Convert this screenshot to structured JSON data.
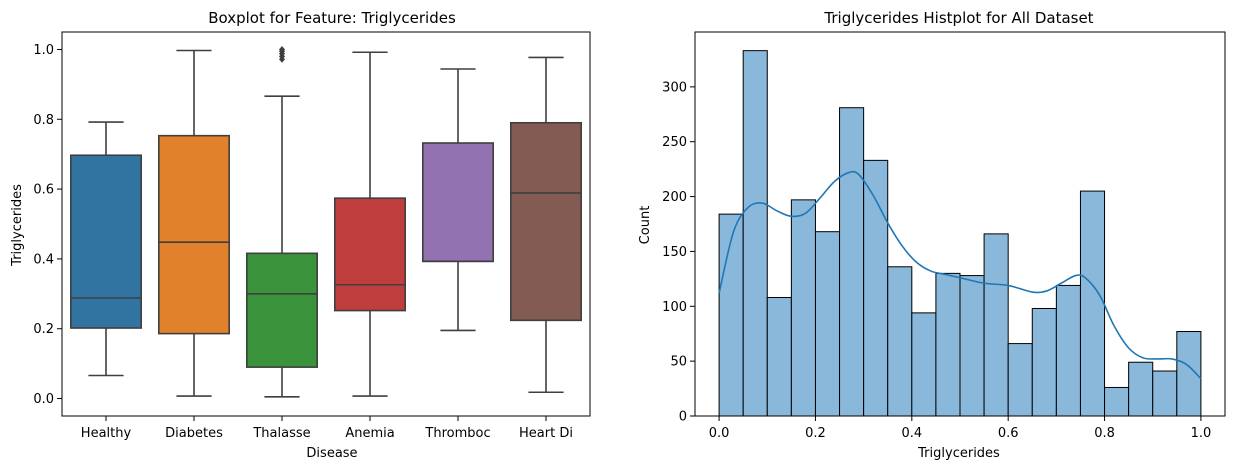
{
  "chart_data": [
    {
      "type": "boxplot",
      "title": "Boxplot for Feature: Triglycerides",
      "xlabel": "Disease",
      "ylabel": "Triglycerides",
      "ylim": [
        -0.05,
        1.05
      ],
      "yticks": [
        "0.0",
        "0.2",
        "0.4",
        "0.6",
        "0.8",
        "1.0"
      ],
      "categories": [
        "Healthy",
        "Diabetes",
        "Thalasse",
        "Anemia",
        "Thromboc",
        "Heart Di"
      ],
      "colors": [
        "#3274a1",
        "#e1812c",
        "#3a923a",
        "#c03d3e",
        "#9372b2",
        "#845b53"
      ],
      "boxes": [
        {
          "whislo": 0.066,
          "q1": 0.202,
          "med": 0.288,
          "q3": 0.697,
          "whishi": 0.792,
          "fliers": []
        },
        {
          "whislo": 0.007,
          "q1": 0.186,
          "med": 0.448,
          "q3": 0.753,
          "whishi": 0.997,
          "fliers": []
        },
        {
          "whislo": 0.005,
          "q1": 0.09,
          "med": 0.3,
          "q3": 0.416,
          "whishi": 0.866,
          "fliers": [
            0.972,
            0.98,
            0.988,
            0.995,
            1.0
          ]
        },
        {
          "whislo": 0.007,
          "q1": 0.252,
          "med": 0.326,
          "q3": 0.574,
          "whishi": 0.992,
          "fliers": []
        },
        {
          "whislo": 0.195,
          "q1": 0.393,
          "med": 0.393,
          "q3": 0.732,
          "whishi": 0.944,
          "fliers": []
        },
        {
          "whislo": 0.018,
          "q1": 0.224,
          "med": 0.589,
          "q3": 0.79,
          "whishi": 0.977,
          "fliers": []
        }
      ]
    },
    {
      "type": "histogram",
      "title": "Triglycerides Histplot for All Dataset",
      "xlabel": "Triglycerides",
      "ylabel": "Count",
      "xlim": [
        -0.05,
        1.05
      ],
      "ylim": [
        0,
        350
      ],
      "xticks": [
        "0.0",
        "0.2",
        "0.4",
        "0.6",
        "0.8",
        "1.0"
      ],
      "yticks": [
        "0",
        "50",
        "100",
        "150",
        "200",
        "250",
        "300"
      ],
      "bar_color": "#8ab8da",
      "kde_color": "#1f77b4",
      "bin_edges": [
        0.0,
        0.05,
        0.1,
        0.15,
        0.2,
        0.25,
        0.3,
        0.35,
        0.4,
        0.45,
        0.5,
        0.55,
        0.6,
        0.65,
        0.7,
        0.75,
        0.8,
        0.85,
        0.9,
        0.95,
        1.0
      ],
      "counts": [
        184,
        333,
        108,
        197,
        168,
        281,
        233,
        136,
        94,
        130,
        128,
        166,
        66,
        98,
        119,
        205,
        26,
        49,
        41,
        77
      ],
      "kde": {
        "x": [
          0.0,
          0.03,
          0.06,
          0.09,
          0.12,
          0.15,
          0.18,
          0.21,
          0.24,
          0.27,
          0.29,
          0.32,
          0.35,
          0.38,
          0.41,
          0.44,
          0.47,
          0.5,
          0.55,
          0.6,
          0.65,
          0.68,
          0.71,
          0.74,
          0.76,
          0.79,
          0.82,
          0.85,
          0.88,
          0.91,
          0.94,
          0.97,
          1.0
        ],
        "y": [
          112,
          168,
          190,
          194,
          187,
          182,
          185,
          199,
          214,
          222,
          220,
          201,
          176,
          155,
          140,
          132,
          129,
          126,
          121,
          119,
          113,
          114,
          121,
          128,
          126,
          110,
          82,
          62,
          53,
          52,
          52,
          47,
          34
        ]
      }
    }
  ]
}
